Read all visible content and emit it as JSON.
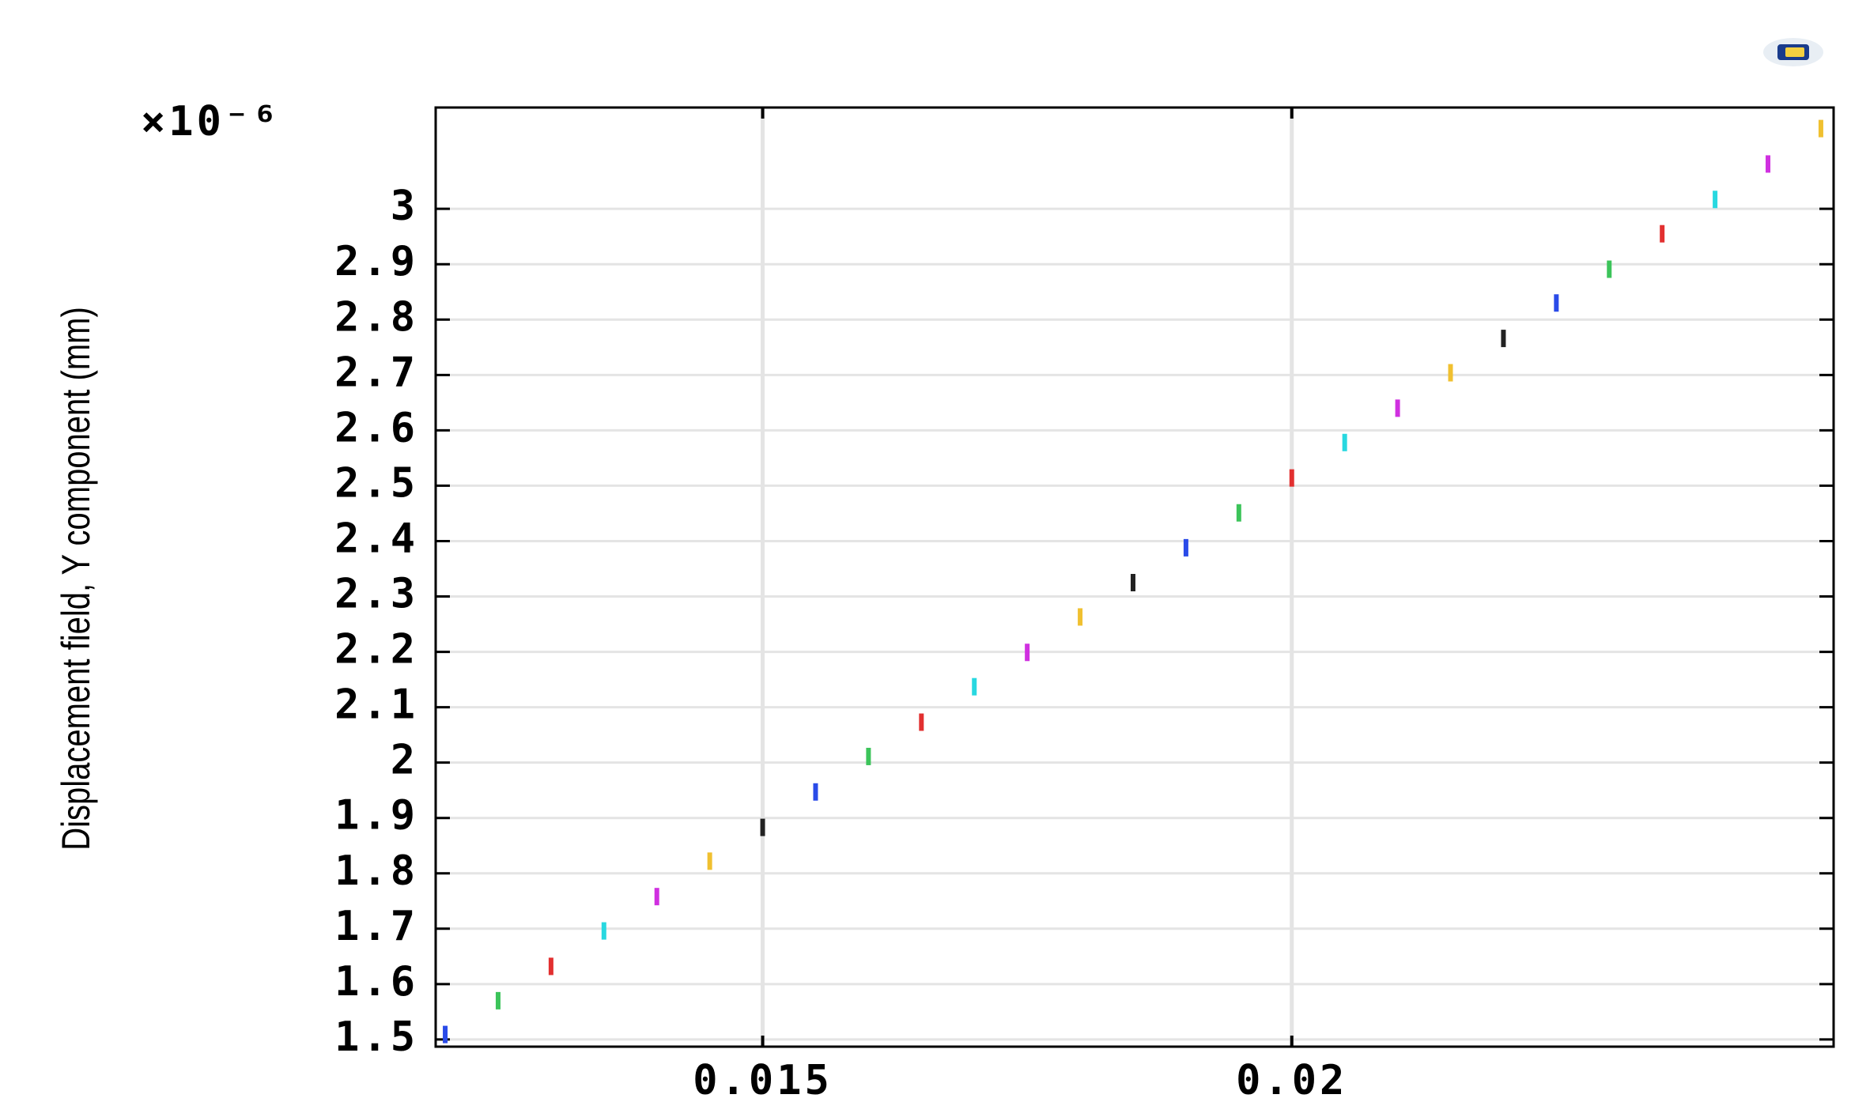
{
  "chart_data": {
    "type": "scatter",
    "y_label": "Displacement field, Y component (mm)",
    "y_scale_label": "×10⁻⁶",
    "x": [
      0.012,
      0.0125,
      0.013,
      0.0135,
      0.014,
      0.0145,
      0.015,
      0.0155,
      0.016,
      0.0165,
      0.017,
      0.0175,
      0.018,
      0.0185,
      0.019,
      0.0195,
      0.02,
      0.0205,
      0.021,
      0.0215,
      0.022,
      0.0225,
      0.023,
      0.0235,
      0.024,
      0.0245,
      0.025
    ],
    "values": [
      1.509,
      1.57,
      1.632,
      1.696,
      1.758,
      1.822,
      1.883,
      1.947,
      2.011,
      2.073,
      2.137,
      2.199,
      2.263,
      2.325,
      2.388,
      2.451,
      2.514,
      2.578,
      2.64,
      2.704,
      2.766,
      2.83,
      2.891,
      2.955,
      3.017,
      3.081,
      3.145
    ],
    "colors": [
      "#2a4be8",
      "#3cc45a",
      "#e23030",
      "#28d8e0",
      "#d030e0",
      "#f0c030",
      "#222222"
    ],
    "xlim": [
      0.01191,
      0.02512
    ],
    "ylim": [
      1.487,
      3.183
    ],
    "xticks": [
      0.015,
      0.02
    ],
    "yticks": [
      1.5,
      1.6,
      1.7,
      1.8,
      1.9,
      2,
      2.1,
      2.2,
      2.3,
      2.4,
      2.5,
      2.6,
      2.7,
      2.8,
      2.9,
      3
    ],
    "grid": true
  }
}
